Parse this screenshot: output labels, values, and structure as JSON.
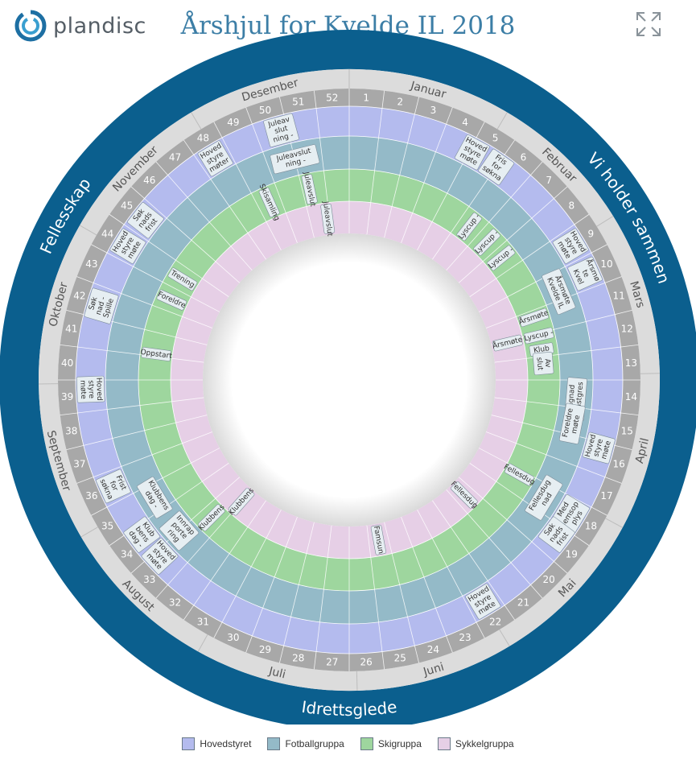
{
  "brand": {
    "name": "plandisc"
  },
  "title": "Årshjul for Kvelde IL 2018",
  "colors": {
    "outer": "#0b5f8e",
    "gray_light": "#dcdcdc",
    "gray_dark": "#a8a8a8",
    "hovedstyret": "#b4bbee",
    "fotballgruppa": "#94bac8",
    "skigruppa": "#9ed69e",
    "sykkelgruppa": "#e6cfe6",
    "event_fill": "#e6eef2"
  },
  "outer_ring_labels": [
    "Vi holder sammen",
    "Idrettsglede",
    "Fellesskap"
  ],
  "months": [
    "Januar",
    "Februar",
    "Mars",
    "April",
    "Mai",
    "Juni",
    "Juli",
    "August",
    "September",
    "Oktober",
    "November",
    "Desember"
  ],
  "weeks": [
    "1",
    "2",
    "3",
    "4",
    "5",
    "6",
    "7",
    "8",
    "9",
    "10",
    "11",
    "12",
    "13",
    "14",
    "15",
    "16",
    "17",
    "18",
    "19",
    "20",
    "21",
    "22",
    "23",
    "24",
    "25",
    "26",
    "27",
    "28",
    "29",
    "30",
    "31",
    "32",
    "33",
    "34",
    "35",
    "36",
    "37",
    "38",
    "39",
    "40",
    "41",
    "42",
    "43",
    "44",
    "45",
    "46",
    "47",
    "48",
    "49",
    "50",
    "51",
    "52"
  ],
  "legend": [
    {
      "label": "Hovedstyret",
      "color": "#b4bbee"
    },
    {
      "label": "Fotballgruppa",
      "color": "#94bac8"
    },
    {
      "label": "Skigruppa",
      "color": "#9ed69e"
    },
    {
      "label": "Sykkelgruppa",
      "color": "#e6cfe6"
    }
  ],
  "events": [
    {
      "ring": 0,
      "week": 4.6,
      "lines": [
        "Hoved",
        "styre",
        "møte"
      ]
    },
    {
      "ring": 0,
      "week": 5.5,
      "lines": [
        "Fris",
        "for",
        "søkna"
      ]
    },
    {
      "ring": 0,
      "week": 9.0,
      "lines": [
        "Hoved",
        "styre",
        "møte"
      ]
    },
    {
      "ring": 0,
      "week": 10.0,
      "lines": [
        "Årsmø",
        "te",
        "Kvel"
      ]
    },
    {
      "ring": 0,
      "week": 15.7,
      "lines": [
        "Hoved",
        "styre",
        "møte"
      ]
    },
    {
      "ring": 0,
      "week": 18.0,
      "lines": [
        "Med",
        "lemsop",
        "plys"
      ]
    },
    {
      "ring": 0,
      "week": 18.8,
      "lines": [
        "Søk",
        "nads",
        "frist"
      ]
    },
    {
      "ring": 0,
      "week": 22.0,
      "lines": [
        "Hoved",
        "styre",
        "møte"
      ]
    },
    {
      "ring": 0,
      "week": 33.3,
      "lines": [
        "Hoved",
        "styre",
        "møte"
      ]
    },
    {
      "ring": 0,
      "week": 34.2,
      "lines": [
        "Klub",
        "bens",
        "dag -"
      ]
    },
    {
      "ring": 0,
      "week": 36.0,
      "lines": [
        "Frist",
        "for",
        "søkna"
      ]
    },
    {
      "ring": 0,
      "week": 39.2,
      "lines": [
        "Hoved",
        "styre",
        "møte"
      ]
    },
    {
      "ring": 0,
      "week": 41.9,
      "lines": [
        "Søk",
        "nad -",
        "Spille"
      ]
    },
    {
      "ring": 0,
      "week": 44.0,
      "lines": [
        "Hoved",
        "styre",
        "møte"
      ]
    },
    {
      "ring": 0,
      "week": 45.0,
      "lines": [
        "Søk",
        "nads",
        "frist"
      ]
    },
    {
      "ring": 0,
      "week": 48.0,
      "lines": [
        "Hoved",
        "styre",
        "møter"
      ]
    },
    {
      "ring": 0,
      "week": 50.3,
      "lines": [
        "Juleav",
        "slut",
        "ning -"
      ]
    },
    {
      "ring": 1,
      "week": 10.2,
      "lines": [
        "Årsmøte",
        "Kvelde IL"
      ]
    },
    {
      "ring": 1,
      "week": 14.2,
      "lines": [
        "Dugnad",
        "kunstgres"
      ]
    },
    {
      "ring": 1,
      "week": 15.1,
      "lines": [
        "Foreldre",
        "møte"
      ]
    },
    {
      "ring": 1,
      "week": 18.0,
      "lines": [
        "Fellesdug",
        "nad"
      ]
    },
    {
      "ring": 1,
      "week": 33.5,
      "lines": [
        "Innrap",
        "porte",
        "ring"
      ]
    },
    {
      "ring": 1,
      "week": 35.0,
      "lines": [
        "Klubbens",
        "dag -"
      ]
    },
    {
      "ring": 1,
      "week": 50.5,
      "lines": [
        "Juleavslut",
        "ning -"
      ]
    },
    {
      "ring": 2,
      "week": 6.0,
      "lines": [
        "Lyscup -"
      ]
    },
    {
      "ring": 2,
      "week": 7.0,
      "lines": [
        "Lyscup -"
      ]
    },
    {
      "ring": 2,
      "week": 7.9,
      "lines": [
        "Lyscup -"
      ]
    },
    {
      "ring": 2,
      "week": 10.8,
      "lines": [
        "Årsmøte"
      ]
    },
    {
      "ring": 2,
      "week": 11.6,
      "lines": [
        "Lyscup -"
      ]
    },
    {
      "ring": 2,
      "week": 12.2,
      "lines": [
        "Klub"
      ]
    },
    {
      "ring": 2,
      "week": 12.8,
      "lines": [
        "Av",
        "slut"
      ]
    },
    {
      "ring": 2,
      "week": 17.7,
      "lines": [
        "Fellesdug"
      ]
    },
    {
      "ring": 2,
      "week": 33.0,
      "lines": [
        "Klubbens"
      ]
    },
    {
      "ring": 2,
      "week": 40.6,
      "lines": [
        "Oppstart"
      ]
    },
    {
      "ring": 2,
      "week": 43.0,
      "lines": [
        "Foreldre"
      ]
    },
    {
      "ring": 2,
      "week": 44.0,
      "lines": [
        "Trening"
      ]
    },
    {
      "ring": 2,
      "week": 49.0,
      "lines": [
        "Skisamling"
      ]
    },
    {
      "ring": 2,
      "week": 50.8,
      "lines": [
        "Juleavslut"
      ]
    },
    {
      "ring": 3,
      "week": 11.6,
      "lines": [
        "Årsmøte"
      ]
    },
    {
      "ring": 3,
      "week": 20.0,
      "lines": [
        "Fellesdug"
      ]
    },
    {
      "ring": 3,
      "week": 25.0,
      "lines": [
        "Famsun"
      ]
    },
    {
      "ring": 3,
      "week": 32.5,
      "lines": [
        "Klubbens"
      ]
    },
    {
      "ring": 3,
      "week": 51.4,
      "lines": [
        "Juleavslut"
      ]
    }
  ]
}
